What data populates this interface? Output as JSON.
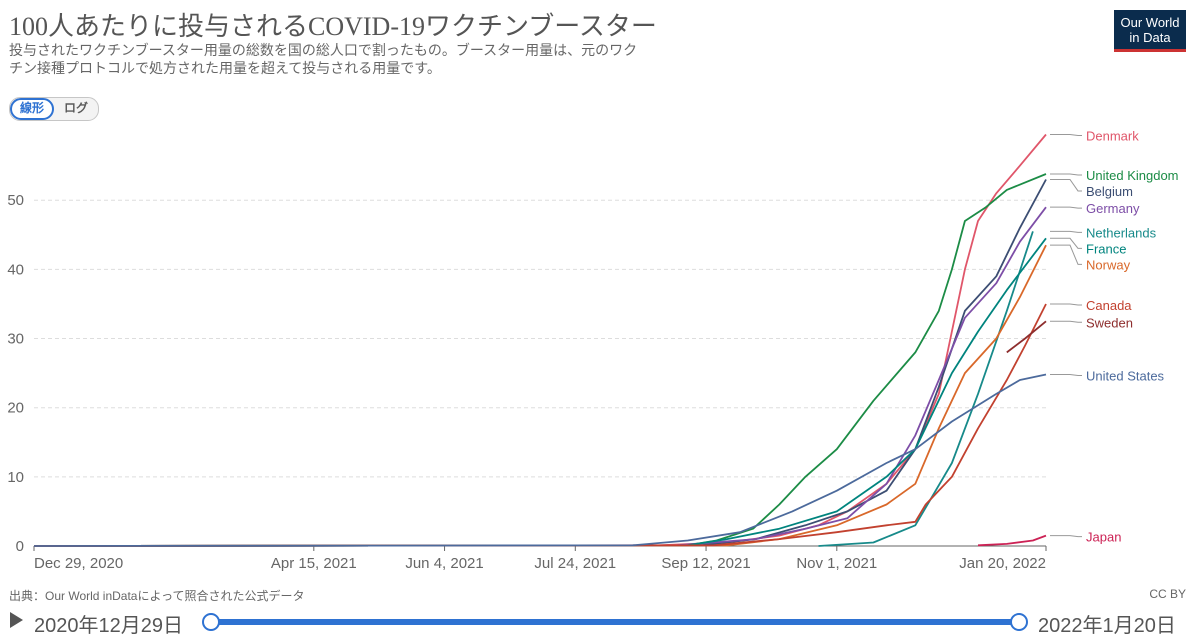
{
  "header": {
    "title": "100人あたりに投与されるCOVID-19ワクチンブースター",
    "subtitle": "投与されたワクチンブースター用量の総数を国の総人口で割ったもの。ブースター用量は、元のワクチン接種プロトコルで処方された用量を超えて投与される用量です。",
    "logo_line1": "Our World",
    "logo_line2": "in Data"
  },
  "scale_toggle": {
    "linear_label": "線形",
    "log_label": "ログ",
    "selected": "線形"
  },
  "footer": {
    "source": "出典：Our World inDataによって照合された公式データ",
    "license": "CC BY"
  },
  "timeline": {
    "start_label": "2020年12月29日",
    "end_label": "2022年1月20日"
  },
  "colors": {
    "grid": "#dddddd",
    "axis": "#666666",
    "leader": "#999999",
    "track": "#2e72d2"
  },
  "chart_data": {
    "type": "line",
    "title": "100人あたりに投与されるCOVID-19ワクチンブースター",
    "x_range": [
      "2020-12-29",
      "2022-01-20"
    ],
    "ylim": [
      0,
      59
    ],
    "yticks": [
      0,
      10,
      20,
      30,
      40,
      50
    ],
    "xticks": [
      {
        "date": "2020-12-29",
        "label": "Dec 29, 2020"
      },
      {
        "date": "2021-04-15",
        "label": "Apr 15, 2021"
      },
      {
        "date": "2021-06-04",
        "label": "Jun 4, 2021"
      },
      {
        "date": "2021-07-24",
        "label": "Jul 24, 2021"
      },
      {
        "date": "2021-09-12",
        "label": "Sep 12, 2021"
      },
      {
        "date": "2021-11-01",
        "label": "Nov 1, 2021"
      },
      {
        "date": "2022-01-20",
        "label": "Jan 20, 2022"
      }
    ],
    "grid": true,
    "series": [
      {
        "name": "Denmark",
        "color": "#e0566a",
        "end_value": 59.5,
        "points": [
          [
            "2020-12-29",
            0
          ],
          [
            "2021-08-25",
            0.1
          ],
          [
            "2021-09-20",
            0.5
          ],
          [
            "2021-10-10",
            1.5
          ],
          [
            "2021-10-25",
            3
          ],
          [
            "2021-11-05",
            5
          ],
          [
            "2021-11-20",
            9
          ],
          [
            "2021-12-01",
            14
          ],
          [
            "2021-12-10",
            22
          ],
          [
            "2021-12-20",
            40
          ],
          [
            "2021-12-25",
            47
          ],
          [
            "2022-01-01",
            51
          ],
          [
            "2022-01-10",
            55
          ],
          [
            "2022-01-20",
            59.5
          ]
        ]
      },
      {
        "name": "United Kingdom",
        "color": "#1c8c46",
        "end_value": 53.8,
        "points": [
          [
            "2020-12-29",
            0
          ],
          [
            "2021-09-05",
            0.1
          ],
          [
            "2021-09-16",
            0.8
          ],
          [
            "2021-09-30",
            2.5
          ],
          [
            "2021-10-10",
            6
          ],
          [
            "2021-10-20",
            10
          ],
          [
            "2021-11-01",
            14
          ],
          [
            "2021-11-15",
            21
          ],
          [
            "2021-12-01",
            28
          ],
          [
            "2021-12-10",
            34
          ],
          [
            "2021-12-15",
            40
          ],
          [
            "2021-12-20",
            47
          ],
          [
            "2021-12-28",
            49
          ],
          [
            "2022-01-05",
            51.5
          ],
          [
            "2022-01-20",
            53.8
          ]
        ]
      },
      {
        "name": "Belgium",
        "color": "#3c4e73",
        "end_value": 53.0,
        "points": [
          [
            "2020-12-29",
            0
          ],
          [
            "2021-09-10",
            0.1
          ],
          [
            "2021-10-01",
            1
          ],
          [
            "2021-10-20",
            3
          ],
          [
            "2021-11-05",
            5
          ],
          [
            "2021-11-20",
            8
          ],
          [
            "2021-12-01",
            14
          ],
          [
            "2021-12-10",
            23
          ],
          [
            "2021-12-20",
            34
          ],
          [
            "2022-01-01",
            39
          ],
          [
            "2022-01-10",
            46
          ],
          [
            "2022-01-20",
            53
          ]
        ]
      },
      {
        "name": "Germany",
        "color": "#7d4ea7",
        "end_value": 49.0,
        "points": [
          [
            "2020-12-29",
            0
          ],
          [
            "2021-09-01",
            0.1
          ],
          [
            "2021-10-01",
            1
          ],
          [
            "2021-10-20",
            2.5
          ],
          [
            "2021-11-05",
            4
          ],
          [
            "2021-11-20",
            9
          ],
          [
            "2021-12-01",
            16
          ],
          [
            "2021-12-10",
            24
          ],
          [
            "2021-12-20",
            33
          ],
          [
            "2022-01-01",
            38
          ],
          [
            "2022-01-10",
            44
          ],
          [
            "2022-01-20",
            49
          ]
        ]
      },
      {
        "name": "Netherlands",
        "color": "#178a8a",
        "end_value": 45.5,
        "points": [
          [
            "2021-10-25",
            0
          ],
          [
            "2021-11-15",
            0.5
          ],
          [
            "2021-12-01",
            3
          ],
          [
            "2021-12-15",
            12
          ],
          [
            "2021-12-25",
            22
          ],
          [
            "2022-01-05",
            34
          ],
          [
            "2022-01-15",
            45.5
          ]
        ]
      },
      {
        "name": "France",
        "color": "#00847e",
        "end_value": 44.5,
        "points": [
          [
            "2020-12-29",
            0
          ],
          [
            "2021-09-05",
            0.1
          ],
          [
            "2021-09-20",
            1
          ],
          [
            "2021-10-10",
            2.5
          ],
          [
            "2021-11-01",
            5
          ],
          [
            "2021-11-20",
            10
          ],
          [
            "2021-12-01",
            14
          ],
          [
            "2021-12-15",
            25
          ],
          [
            "2021-12-25",
            31
          ],
          [
            "2022-01-05",
            37
          ],
          [
            "2022-01-20",
            44.5
          ]
        ]
      },
      {
        "name": "Norway",
        "color": "#d9682a",
        "end_value": 43.5,
        "points": [
          [
            "2020-12-29",
            0
          ],
          [
            "2021-09-20",
            0.1
          ],
          [
            "2021-10-10",
            1
          ],
          [
            "2021-11-01",
            3
          ],
          [
            "2021-11-20",
            6
          ],
          [
            "2021-12-01",
            9
          ],
          [
            "2021-12-10",
            17
          ],
          [
            "2021-12-20",
            25
          ],
          [
            "2022-01-01",
            30
          ],
          [
            "2022-01-10",
            36
          ],
          [
            "2022-01-20",
            43.5
          ]
        ]
      },
      {
        "name": "Canada",
        "color": "#c2412f",
        "end_value": 35.0,
        "points": [
          [
            "2020-12-29",
            0
          ],
          [
            "2021-09-15",
            0.1
          ],
          [
            "2021-10-10",
            1
          ],
          [
            "2021-11-01",
            2
          ],
          [
            "2021-11-20",
            3
          ],
          [
            "2021-12-01",
            3.5
          ],
          [
            "2021-12-05",
            6
          ],
          [
            "2021-12-15",
            10
          ],
          [
            "2021-12-25",
            17
          ],
          [
            "2022-01-05",
            24
          ],
          [
            "2022-01-12",
            29
          ],
          [
            "2022-01-20",
            35
          ]
        ]
      },
      {
        "name": "Sweden",
        "color": "#8e2e2e",
        "end_value": 32.5,
        "points": [
          [
            "2022-01-05",
            28
          ],
          [
            "2022-01-12",
            30
          ],
          [
            "2022-01-20",
            32.5
          ]
        ]
      },
      {
        "name": "United States",
        "color": "#4c6a9c",
        "end_value": 24.8,
        "points": [
          [
            "2020-12-29",
            0
          ],
          [
            "2021-08-15",
            0.1
          ],
          [
            "2021-09-05",
            0.8
          ],
          [
            "2021-09-25",
            2
          ],
          [
            "2021-10-15",
            5
          ],
          [
            "2021-11-01",
            8
          ],
          [
            "2021-11-20",
            12
          ],
          [
            "2021-12-01",
            14
          ],
          [
            "2021-12-15",
            18
          ],
          [
            "2022-01-01",
            22
          ],
          [
            "2022-01-10",
            24
          ],
          [
            "2022-01-20",
            24.8
          ]
        ]
      },
      {
        "name": "Japan",
        "color": "#cc2255",
        "end_value": 1.5,
        "points": [
          [
            "2021-12-25",
            0.1
          ],
          [
            "2022-01-05",
            0.3
          ],
          [
            "2022-01-15",
            0.8
          ],
          [
            "2022-01-20",
            1.5
          ]
        ]
      }
    ]
  }
}
